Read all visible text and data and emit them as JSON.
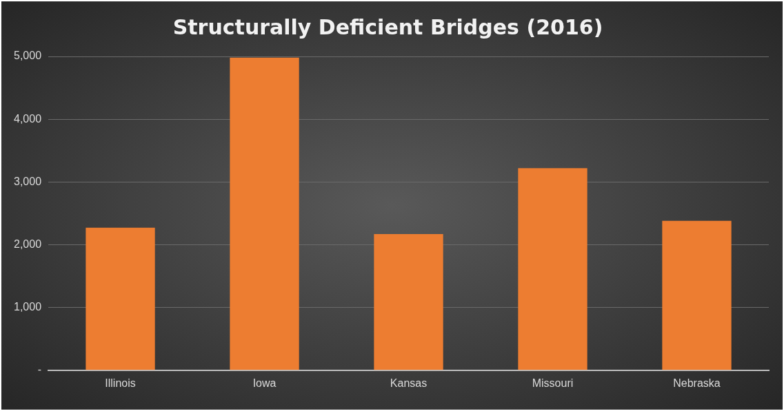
{
  "chart_data": {
    "type": "bar",
    "title": "Structurally Deficient Bridges (2016)",
    "categories": [
      "Illinois",
      "Iowa",
      "Kansas",
      "Missouri",
      "Nebraska"
    ],
    "values": [
      2270,
      4980,
      2170,
      3220,
      2380
    ],
    "color": "#ed7d31",
    "ylim": [
      0,
      5000
    ],
    "yticks": [
      {
        "value": 0,
        "label": "-"
      },
      {
        "value": 1000,
        "label": "1,000"
      },
      {
        "value": 2000,
        "label": "2,000"
      },
      {
        "value": 3000,
        "label": "3,000"
      },
      {
        "value": 4000,
        "label": "4,000"
      },
      {
        "value": 5000,
        "label": "5,000"
      }
    ],
    "grid": "y"
  }
}
